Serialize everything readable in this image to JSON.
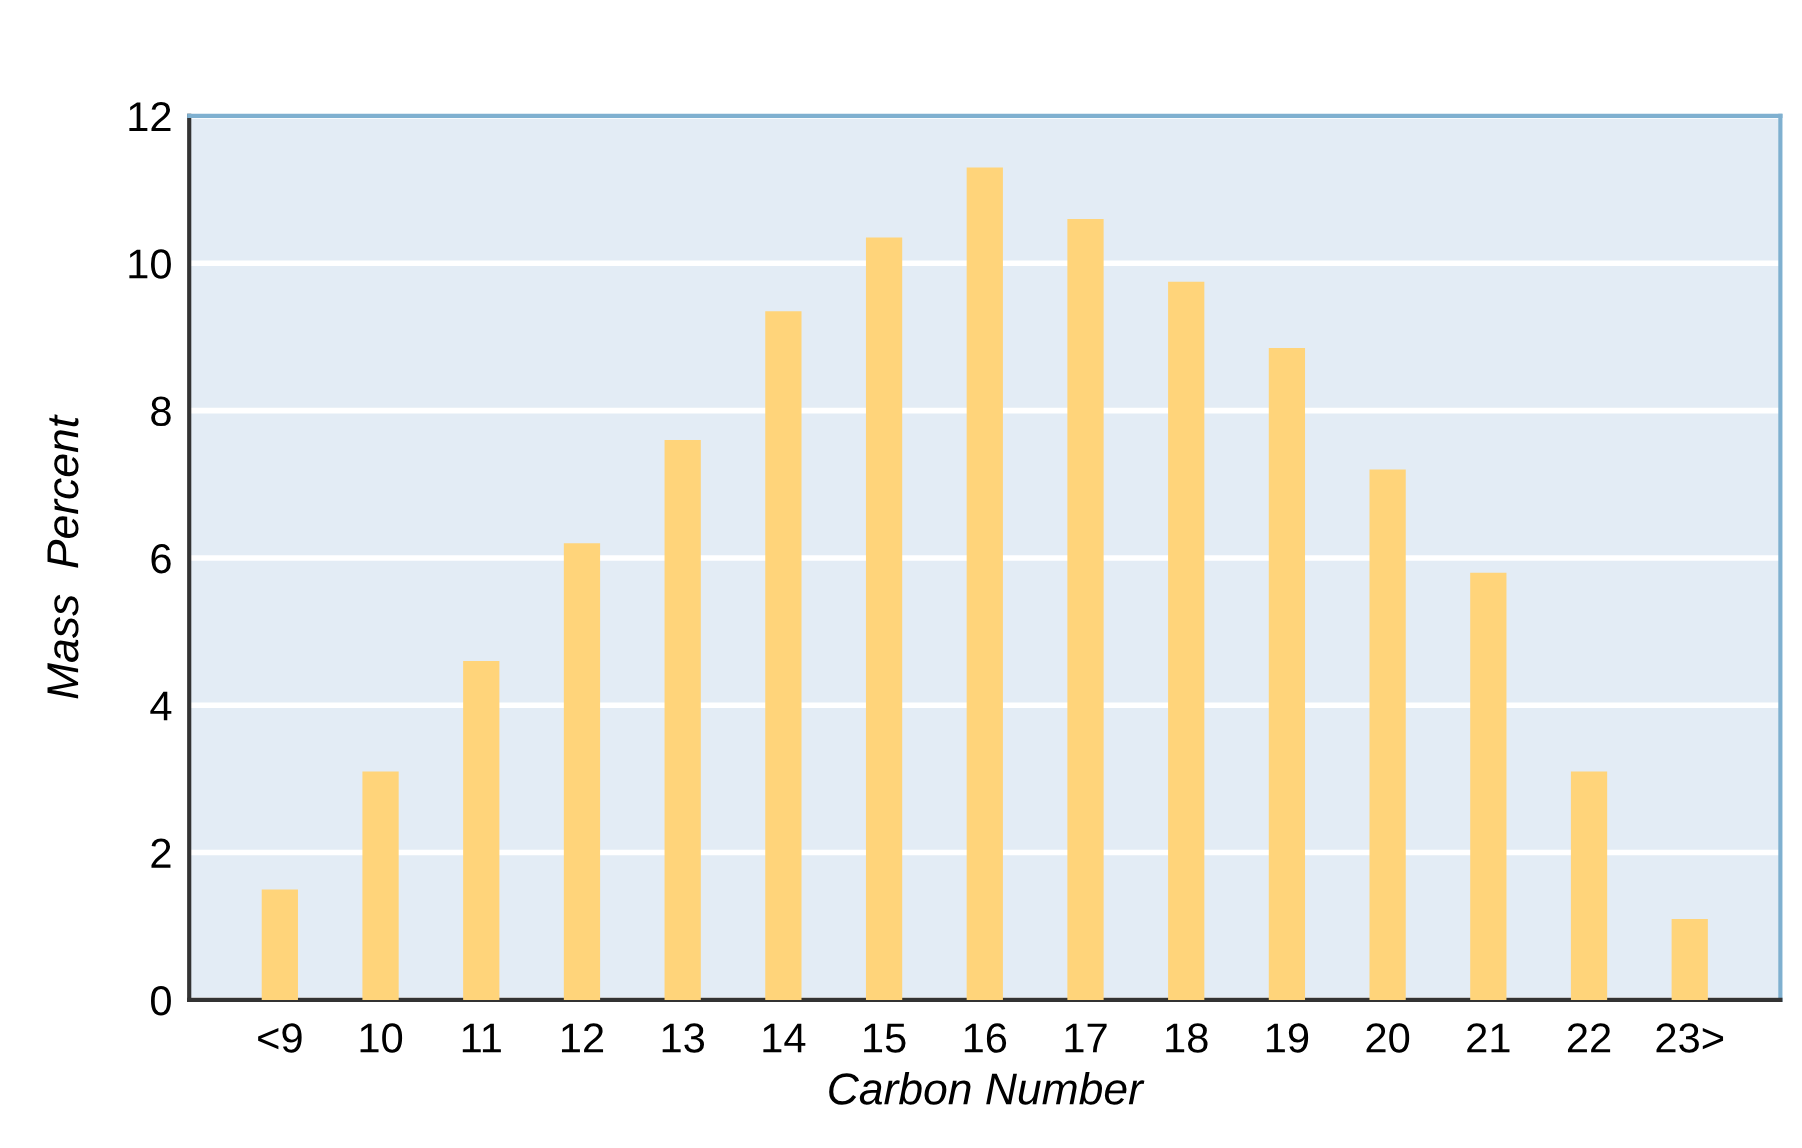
{
  "chart_data": {
    "type": "bar",
    "xlabel": "Carbon Number",
    "ylabel": "Mass  Percent",
    "categories": [
      "<9",
      "10",
      "11",
      "12",
      "13",
      "14",
      "15",
      "16",
      "17",
      "18",
      "19",
      "20",
      "21",
      "22",
      "23>"
    ],
    "values": [
      1.5,
      3.1,
      4.6,
      6.2,
      7.6,
      9.35,
      10.35,
      11.3,
      10.6,
      9.75,
      8.85,
      7.2,
      5.8,
      3.1,
      1.1
    ],
    "color": "#ffd47a",
    "ylim": [
      0,
      12
    ],
    "yticks": [
      0,
      2,
      4,
      6,
      8,
      10,
      12
    ],
    "grid": "y"
  }
}
